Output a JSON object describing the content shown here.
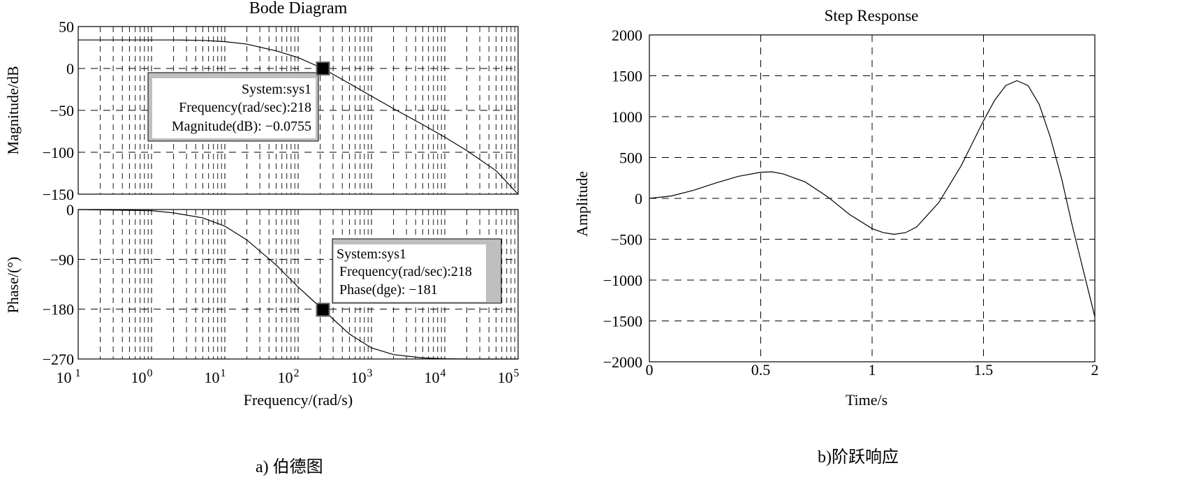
{
  "chart_data": [
    {
      "type": "line",
      "title": "Bode Diagram",
      "xlabel": "Frequency/(rad/s)",
      "xscale": "log",
      "xlim": [
        0.1,
        100000
      ],
      "grid": true,
      "xtick_labels": [
        {
          "base": "10",
          "exp": " 1"
        },
        {
          "base": "10",
          "exp": "0"
        },
        {
          "base": "10",
          "exp": "1"
        },
        {
          "base": "10",
          "exp": "2"
        },
        {
          "base": "10",
          "exp": "3"
        },
        {
          "base": "10",
          "exp": "4"
        },
        {
          "base": "10",
          "exp": "5"
        }
      ],
      "magnitude": {
        "ylabel": "Magnitude/dB",
        "ylim": [
          -150,
          50
        ],
        "yticks": [
          50,
          0,
          -50,
          -100,
          -150
        ],
        "ytick_labels": [
          "50",
          "0",
          "−50",
          "−100",
          "−150"
        ],
        "x": [
          0.1,
          1,
          2,
          5,
          10,
          20,
          50,
          100,
          218,
          500,
          1000,
          2000,
          5000,
          10000,
          20000,
          50000,
          100000
        ],
        "y": [
          34,
          34,
          34,
          33.5,
          32,
          29,
          21,
          13,
          -0.08,
          -18,
          -33,
          -48,
          -67,
          -82,
          -98,
          -122,
          -150
        ],
        "marker": {
          "x": 218,
          "y": -0.0755
        },
        "datatip": [
          "System:sys1",
          "Frequency(rad/sec):218",
          "Magnitude(dB): −0.0755"
        ]
      },
      "phase": {
        "ylabel": "Phase/(°)",
        "ylim": [
          -270,
          0
        ],
        "yticks": [
          0,
          -90,
          -180,
          -270
        ],
        "ytick_labels": [
          "0",
          "−90",
          "−180",
          "−270"
        ],
        "x": [
          0.1,
          1,
          2,
          5,
          10,
          20,
          50,
          100,
          218,
          500,
          1000,
          2000,
          5000,
          10000,
          20000,
          50000,
          100000
        ],
        "y": [
          0,
          -2,
          -6,
          -15,
          -30,
          -55,
          -100,
          -140,
          -181,
          -225,
          -250,
          -262,
          -268,
          -269.5,
          -270,
          -270,
          -270
        ],
        "marker": {
          "x": 218,
          "y": -181
        },
        "datatip": [
          "System:sys1",
          "Frequency(rad/sec):218",
          "Phase(dge): −181"
        ]
      }
    },
    {
      "type": "line",
      "title": "Step Response",
      "xlabel": "Time/s",
      "ylabel": "Amplitude",
      "xlim": [
        0,
        2
      ],
      "ylim": [
        -2000,
        2000
      ],
      "xticks": [
        0,
        0.5,
        1,
        1.5,
        2
      ],
      "xtick_labels": [
        "0",
        "0.5",
        "1",
        "1.5",
        "2"
      ],
      "yticks": [
        2000,
        1500,
        1000,
        500,
        0,
        -500,
        -1000,
        -1500,
        -2000
      ],
      "ytick_labels": [
        "2000",
        "1500",
        "1000",
        "500",
        "0",
        "−500",
        "−1000",
        "−1500",
        "−2000"
      ],
      "grid": true,
      "x": [
        0,
        0.1,
        0.2,
        0.3,
        0.4,
        0.5,
        0.55,
        0.6,
        0.7,
        0.8,
        0.9,
        1.0,
        1.05,
        1.1,
        1.15,
        1.2,
        1.3,
        1.4,
        1.5,
        1.55,
        1.6,
        1.65,
        1.7,
        1.75,
        1.8,
        1.85,
        1.9,
        1.95,
        2.0
      ],
      "y": [
        0,
        30,
        100,
        190,
        270,
        320,
        325,
        300,
        200,
        20,
        -200,
        -370,
        -420,
        -440,
        -420,
        -350,
        -50,
        400,
        950,
        1200,
        1380,
        1440,
        1380,
        1150,
        750,
        250,
        -350,
        -900,
        -1450
      ]
    }
  ],
  "captions": {
    "left": "a) 伯德图",
    "right": "b)阶跃响应"
  }
}
